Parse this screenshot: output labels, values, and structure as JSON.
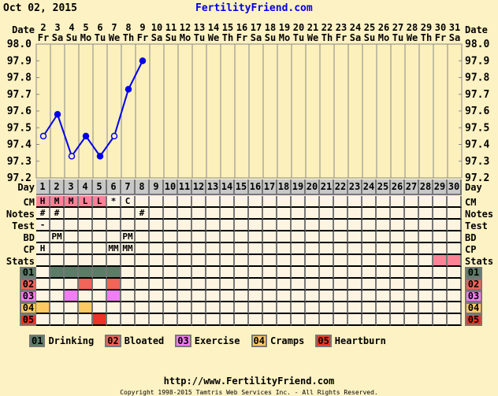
{
  "header": {
    "date": "Oct 02, 2015",
    "site": "FertilityFriend.com"
  },
  "labels": {
    "date": "Date",
    "day": "Day",
    "cm": "CM",
    "notes": "Notes",
    "test": "Test",
    "bd": "BD",
    "cp": "CP",
    "stats": "Stats"
  },
  "dates": [
    "2",
    "3",
    "4",
    "5",
    "6",
    "7",
    "8",
    "9",
    "10",
    "11",
    "12",
    "13",
    "14",
    "15",
    "16",
    "17",
    "18",
    "19",
    "20",
    "21",
    "22",
    "23",
    "24",
    "25",
    "26",
    "27",
    "28",
    "29",
    "30",
    "31"
  ],
  "weekdays": [
    "Fr",
    "Sa",
    "Su",
    "Mo",
    "Tu",
    "We",
    "Th",
    "Fr",
    "Sa",
    "Su",
    "Mo",
    "Tu",
    "We",
    "Th",
    "Fr",
    "Sa",
    "Su",
    "Mo",
    "Tu",
    "We",
    "Th",
    "Fr",
    "Sa",
    "Su",
    "Mo",
    "Tu",
    "We",
    "Th",
    "Fr",
    "Sa"
  ],
  "temp_axis": {
    "ticks": [
      "98.0",
      "97.9",
      "97.8",
      "97.7",
      "97.6",
      "97.5",
      "97.4",
      "97.3",
      "97.2"
    ],
    "min": 97.2,
    "max": 98.0
  },
  "temps": [
    {
      "day": 1,
      "value": 97.45,
      "open": true
    },
    {
      "day": 2,
      "value": 97.58,
      "open": false
    },
    {
      "day": 3,
      "value": 97.33,
      "open": true
    },
    {
      "day": 4,
      "value": 97.45,
      "open": false
    },
    {
      "day": 5,
      "value": 97.33,
      "open": false
    },
    {
      "day": 6,
      "value": 97.45,
      "open": true
    },
    {
      "day": 7,
      "value": 97.73,
      "open": false
    },
    {
      "day": 8,
      "value": 97.9,
      "open": false
    }
  ],
  "line_color": "#0000ee",
  "rows": {
    "cm": [
      "H",
      "M",
      "M",
      "L",
      "L",
      "*",
      "C"
    ],
    "cm_highlight_days": [
      1,
      2,
      3,
      4,
      5
    ],
    "notes": [
      "#",
      "#",
      "",
      "",
      "",
      "",
      "",
      "#"
    ],
    "test": [
      "-"
    ],
    "bd": [
      "",
      "PM",
      "",
      "",
      "",
      "",
      "PM"
    ],
    "cp": [
      "H",
      "",
      "",
      "",
      "",
      "MM",
      "MM"
    ],
    "stats_highlight_days": [
      29,
      30
    ]
  },
  "symptoms": [
    {
      "code": "01",
      "label": "Drinking",
      "color": "#5c7c68",
      "days": [
        2,
        3,
        4,
        5,
        6
      ]
    },
    {
      "code": "02",
      "label": "Bloated",
      "color": "#f26358",
      "days": [
        4,
        6
      ]
    },
    {
      "code": "03",
      "label": "Exercise",
      "color": "#f47cf4",
      "days": [
        3,
        6
      ]
    },
    {
      "code": "04",
      "label": "Cramps",
      "color": "#fdc962",
      "days": [
        1,
        4
      ]
    },
    {
      "code": "05",
      "label": "Heartburn",
      "color": "#ee3424",
      "days": [
        5
      ]
    }
  ],
  "footer": {
    "url": "http://www.FertilityFriend.com",
    "copyright": "Copyright 1998-2015 Tamtris Web Services Inc. - All Rights Reserved."
  }
}
